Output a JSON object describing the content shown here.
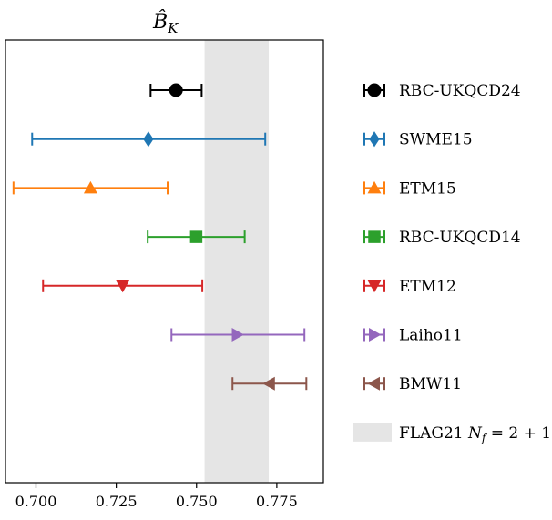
{
  "chart_data": {
    "type": "scatter",
    "title": "B̂_K",
    "title_main": "B̂",
    "title_sub": "K",
    "xlabel": "",
    "ylabel": "",
    "xlim": [
      0.6905,
      0.7895
    ],
    "xticks": [
      0.7,
      0.725,
      0.75,
      0.775
    ],
    "xtick_labels": [
      "0.700",
      "0.725",
      "0.750",
      "0.775"
    ],
    "grid": false,
    "legend_position": "right",
    "band": {
      "name": "FLAG21",
      "name_math": "N_f = 2+1",
      "label_main": "FLAG21 ",
      "label_nf": "N",
      "label_nf_sub": "f",
      "label_tail": " = 2 + 1",
      "low": 0.7525,
      "high": 0.7725,
      "color": "#e5e5e5"
    },
    "series": [
      {
        "name": "RBC-UKQCD24",
        "value": 0.7436,
        "err_low": 0.7357,
        "err_high": 0.7516,
        "marker": "circle",
        "color": "#000000"
      },
      {
        "name": "SWME15",
        "value": 0.735,
        "err_low": 0.6988,
        "err_high": 0.7714,
        "marker": "diamond",
        "color": "#1f77b4"
      },
      {
        "name": "ETM15",
        "value": 0.717,
        "err_low": 0.693,
        "err_high": 0.741,
        "marker": "triangle-up",
        "color": "#ff7f0e"
      },
      {
        "name": "RBC-UKQCD14",
        "value": 0.7499,
        "err_low": 0.7348,
        "err_high": 0.765,
        "marker": "square",
        "color": "#2ca02c"
      },
      {
        "name": "ETM12",
        "value": 0.727,
        "err_low": 0.7022,
        "err_high": 0.7518,
        "marker": "triangle-down",
        "color": "#d62728"
      },
      {
        "name": "Laiho11",
        "value": 0.7627,
        "err_low": 0.7422,
        "err_high": 0.7836,
        "marker": "triangle-right",
        "color": "#9467bd"
      },
      {
        "name": "BMW11",
        "value": 0.7727,
        "err_low": 0.7612,
        "err_high": 0.7842,
        "marker": "triangle-left",
        "color": "#8c564b"
      }
    ]
  }
}
